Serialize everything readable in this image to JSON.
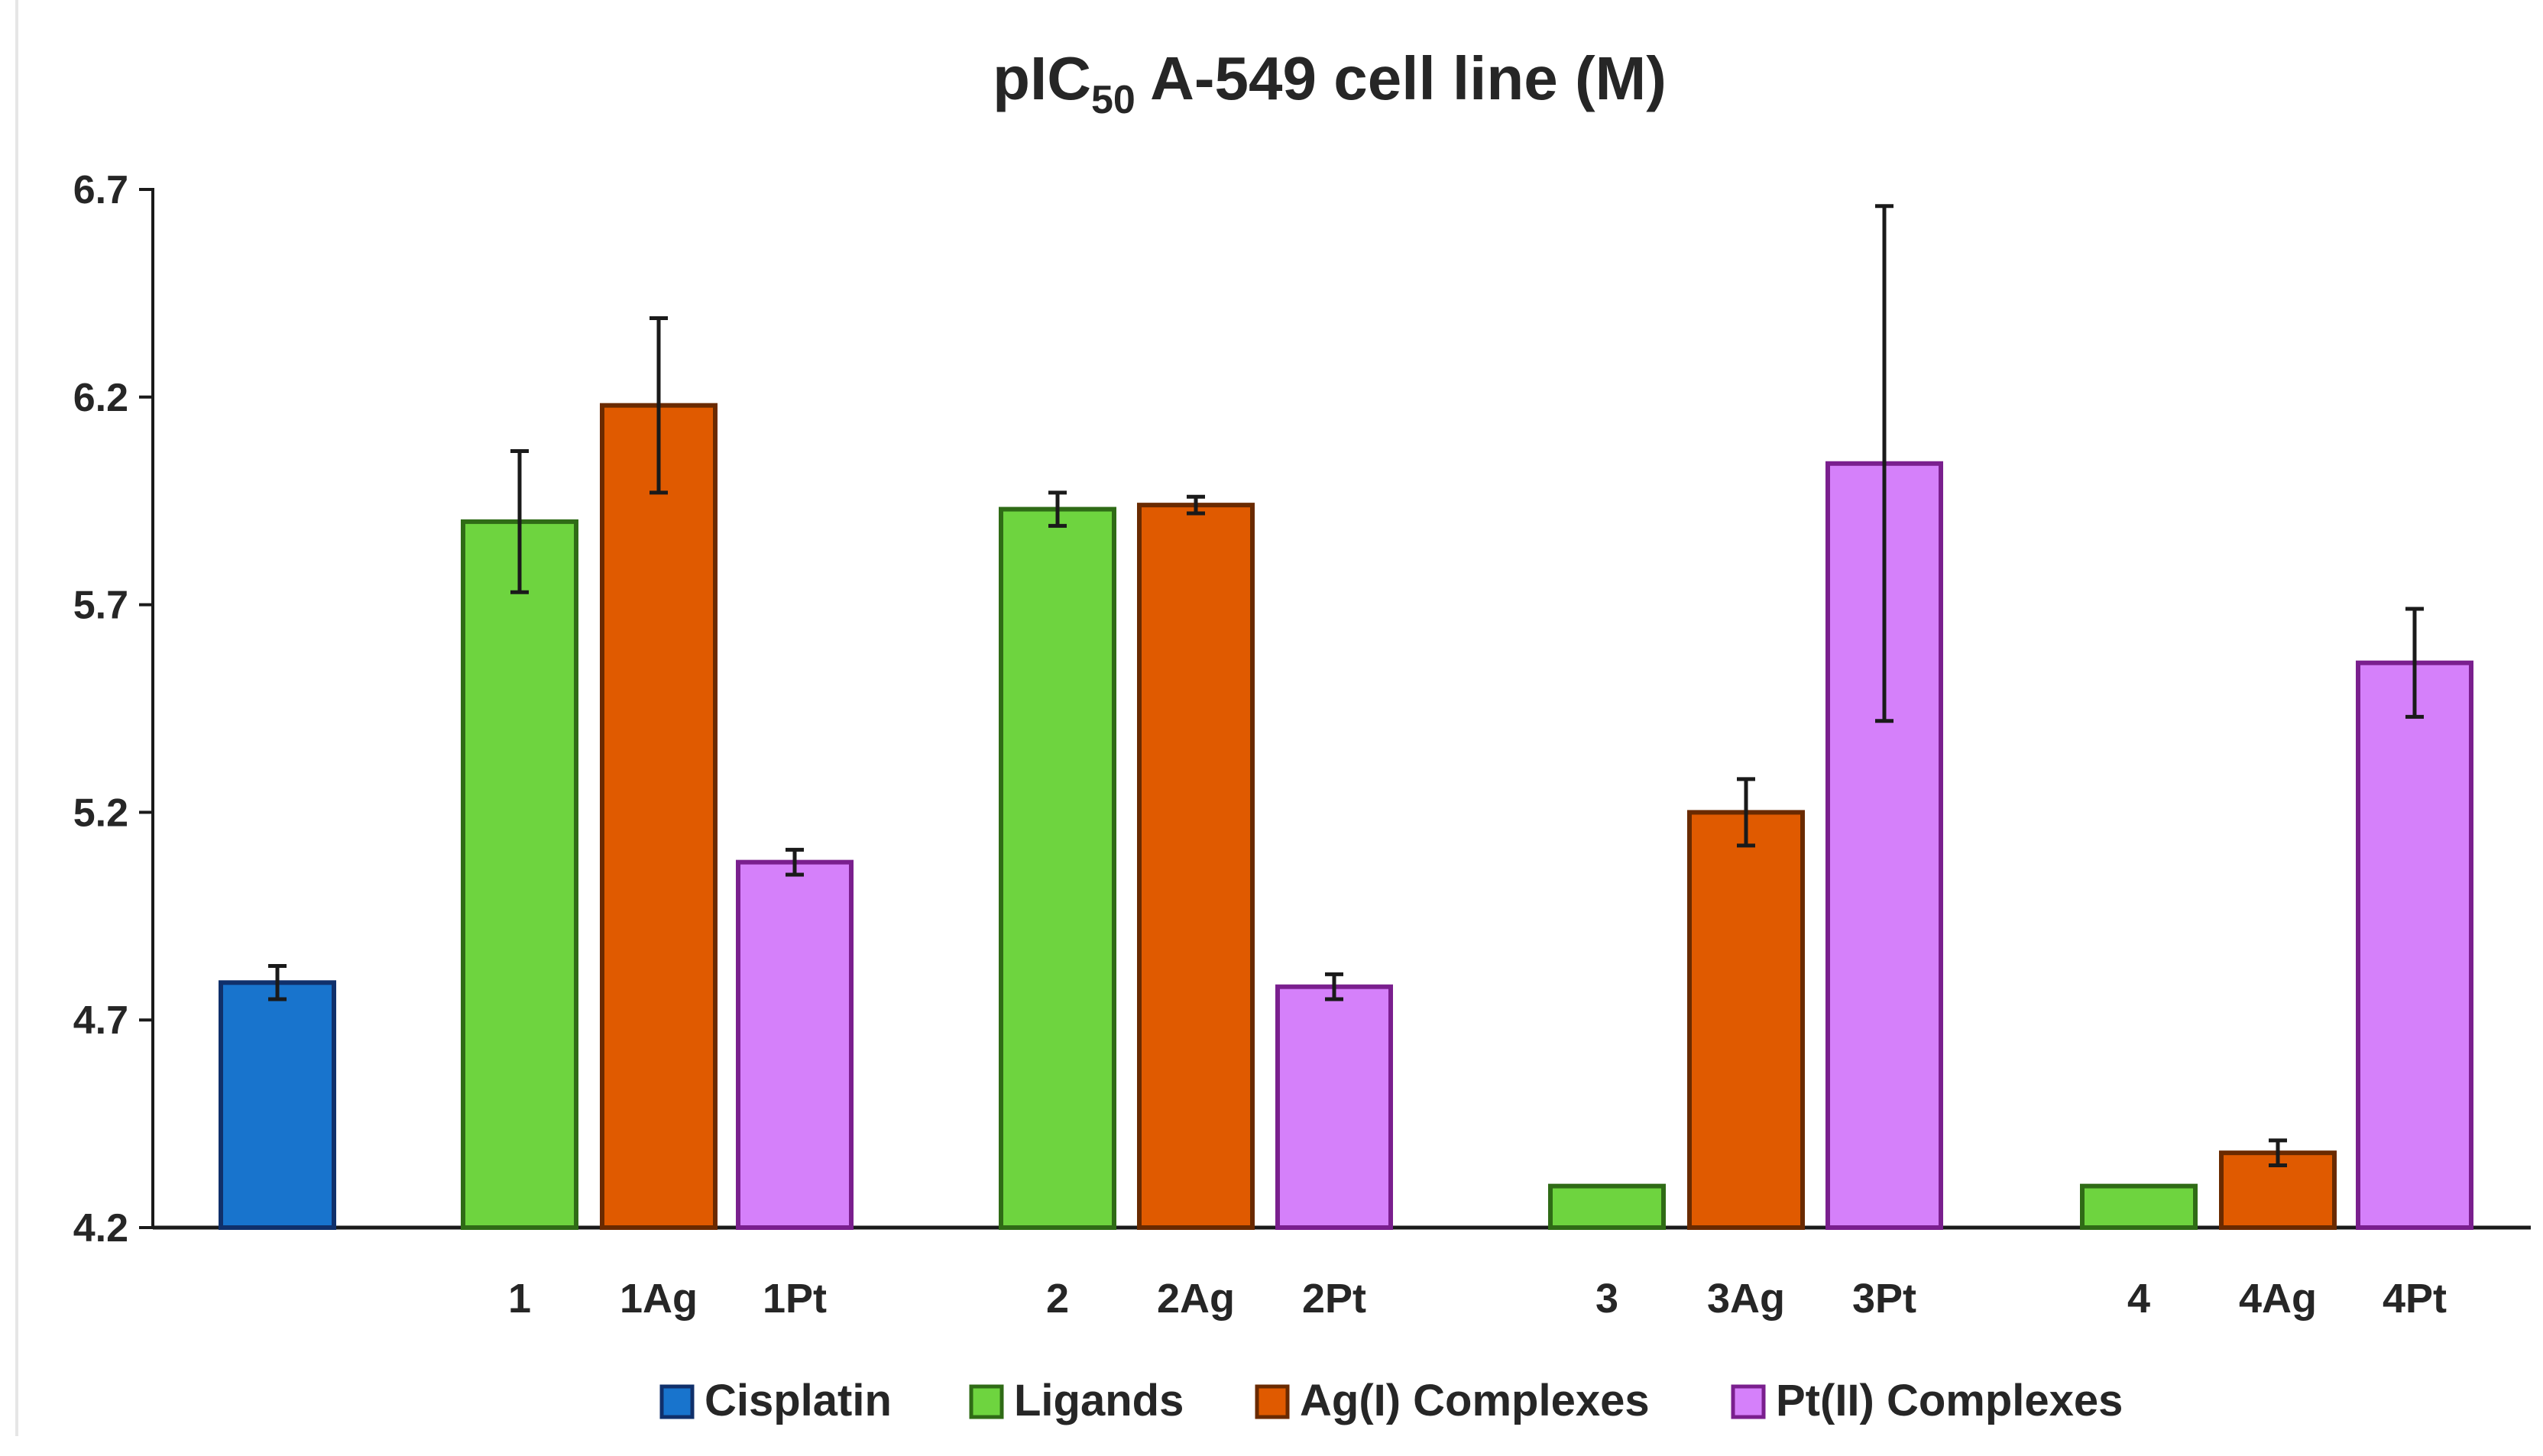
{
  "chart_data": {
    "type": "bar",
    "title": {
      "main": "pIC",
      "sub": "50",
      "rest": " A-549 cell line (M)"
    },
    "xlabel": "",
    "ylabel": "",
    "ylim": [
      4.2,
      6.7
    ],
    "yticks": [
      "6.7",
      "6.2",
      "5.7",
      "5.2",
      "4.7",
      "4.2"
    ],
    "grid": false,
    "legend_position": "bottom",
    "colors": {
      "Cisplatin": {
        "fill": "#1874CD",
        "stroke": "#10306B"
      },
      "Ligands": {
        "fill": "#6ED43F",
        "stroke": "#2F6B16"
      },
      "Ag(I) Complexes": {
        "fill": "#E05A00",
        "stroke": "#6A2A00"
      },
      "Pt(II) Complexes": {
        "fill": "#D580FA",
        "stroke": "#7A1F8E"
      }
    },
    "legend": [
      "Cisplatin",
      "Ligands",
      "Ag(I) Complexes",
      "Pt(II) Complexes"
    ],
    "bars": [
      {
        "label": "",
        "series": "Cisplatin",
        "value": 4.79,
        "error": 0.04
      },
      {
        "label": "1",
        "series": "Ligands",
        "value": 5.9,
        "error": 0.17
      },
      {
        "label": "1Ag",
        "series": "Ag(I) Complexes",
        "value": 6.18,
        "error": 0.21
      },
      {
        "label": "1Pt",
        "series": "Pt(II) Complexes",
        "value": 5.08,
        "error": 0.03
      },
      {
        "label": "2",
        "series": "Ligands",
        "value": 5.93,
        "error": 0.04
      },
      {
        "label": "2Ag",
        "series": "Ag(I) Complexes",
        "value": 5.94,
        "error": 0.02
      },
      {
        "label": "2Pt",
        "series": "Pt(II) Complexes",
        "value": 4.78,
        "error": 0.03
      },
      {
        "label": "3",
        "series": "Ligands",
        "value": 4.3,
        "error": null
      },
      {
        "label": "3Ag",
        "series": "Ag(I) Complexes",
        "value": 5.2,
        "error": 0.08
      },
      {
        "label": "3Pt",
        "series": "Pt(II) Complexes",
        "value": 6.04,
        "error": 0.62
      },
      {
        "label": "4",
        "series": "Ligands",
        "value": 4.3,
        "error": null
      },
      {
        "label": "4Ag",
        "series": "Ag(I) Complexes",
        "value": 4.38,
        "error": 0.03
      },
      {
        "label": "4Pt",
        "series": "Pt(II) Complexes",
        "value": 5.56,
        "error": 0.13
      }
    ]
  }
}
